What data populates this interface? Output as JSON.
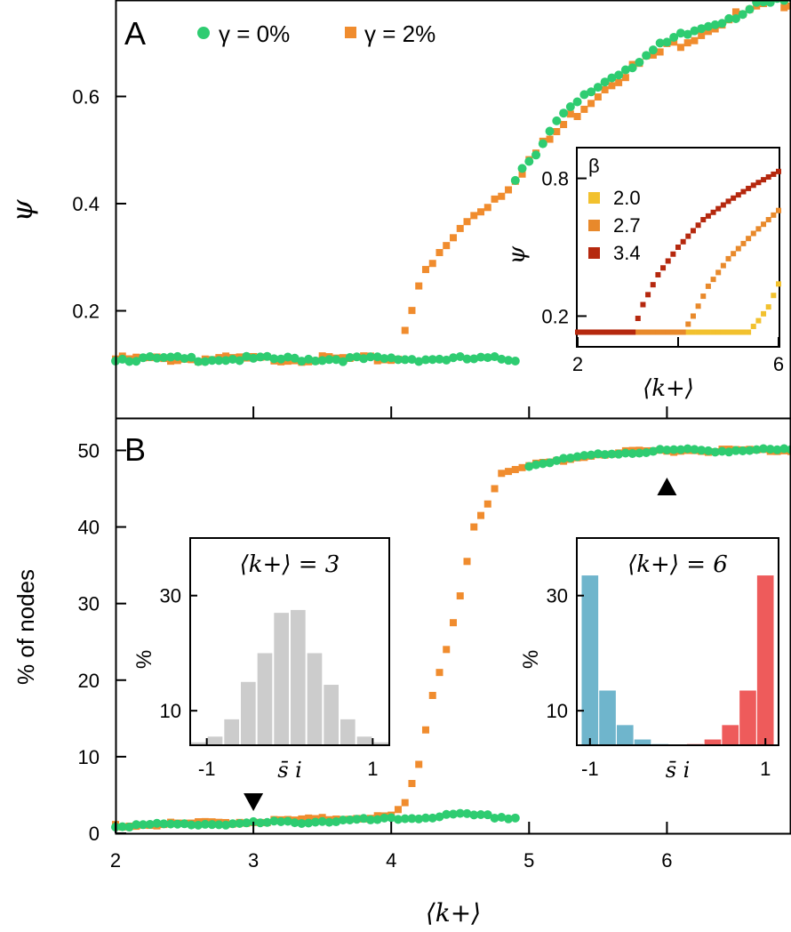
{
  "chart_data": [
    {
      "panel": "A",
      "type": "scatter",
      "panel_label": "A",
      "xlabel": "⟨k+⟩",
      "ylabel": "ψ",
      "xlim": [
        2,
        6.9
      ],
      "ylim": [
        0.0,
        0.78
      ],
      "yticks": [
        "0.2",
        "0.4",
        "0.6"
      ],
      "ytick_values": [
        0.2,
        0.4,
        0.6
      ],
      "xtick_values": [
        3,
        4,
        5,
        6
      ],
      "legend": [
        "γ = 0%",
        "γ = 2%"
      ],
      "legend_position": "top-left",
      "series": [
        {
          "name": "γ = 0%",
          "color": "#2ECC71",
          "marker": "circle",
          "segments": [
            {
              "x_start": 2.0,
              "x_end": 4.9,
              "y_start": 0.11,
              "y_end": 0.11
            },
            {
              "x_start": 4.9,
              "x_end": 6.9,
              "curve": "sqrt-rise",
              "points": [
                [
                  4.9,
                  0.45
                ],
                [
                  5.2,
                  0.55
                ],
                [
                  5.5,
                  0.62
                ],
                [
                  5.8,
                  0.67
                ],
                [
                  6.1,
                  0.71
                ],
                [
                  6.4,
                  0.745
                ],
                [
                  6.7,
                  0.77
                ],
                [
                  6.9,
                  0.78
                ]
              ]
            }
          ]
        },
        {
          "name": "γ = 2%",
          "color": "#F08C2E",
          "marker": "square",
          "segments": [
            {
              "x_start": 2.0,
              "x_end": 4.05,
              "y_start": 0.11,
              "y_end": 0.115
            },
            {
              "x_start": 4.1,
              "x_end": 6.9,
              "curve": "sqrt-rise",
              "points": [
                [
                  4.1,
                  0.17
                ],
                [
                  4.2,
                  0.25
                ],
                [
                  4.4,
                  0.32
                ],
                [
                  4.6,
                  0.38
                ],
                [
                  4.8,
                  0.42
                ],
                [
                  5.0,
                  0.48
                ],
                [
                  5.3,
                  0.56
                ],
                [
                  5.6,
                  0.63
                ],
                [
                  6.0,
                  0.69
                ],
                [
                  6.4,
                  0.74
                ],
                [
                  6.9,
                  0.78
                ]
              ]
            }
          ]
        }
      ],
      "inset": {
        "type": "scatter",
        "xlabel": "⟨k+⟩",
        "ylabel": "ψ",
        "xlim": [
          2,
          6
        ],
        "ylim": [
          0.07,
          0.93
        ],
        "xticks": [
          "2",
          "6"
        ],
        "xtick_values": [
          2,
          6
        ],
        "yticks": [
          "0.2",
          "0.8"
        ],
        "ytick_values": [
          0.2,
          0.8
        ],
        "legend_title": "β",
        "series": [
          {
            "name": "2.0",
            "color": "#F2C12E",
            "threshold": 5.5,
            "points": [
              [
                2,
                0.13
              ],
              [
                5.4,
                0.13
              ],
              [
                5.6,
                0.18
              ],
              [
                5.8,
                0.24
              ],
              [
                6.0,
                0.34
              ]
            ]
          },
          {
            "name": "2.7",
            "color": "#E8892B",
            "threshold": 4.2,
            "points": [
              [
                2,
                0.13
              ],
              [
                4.1,
                0.13
              ],
              [
                4.3,
                0.2
              ],
              [
                4.6,
                0.33
              ],
              [
                5.0,
                0.45
              ],
              [
                5.5,
                0.56
              ],
              [
                6.0,
                0.66
              ]
            ]
          },
          {
            "name": "3.4",
            "color": "#B5280E",
            "threshold": 3.2,
            "points": [
              [
                2,
                0.13
              ],
              [
                3.1,
                0.13
              ],
              [
                3.3,
                0.25
              ],
              [
                3.6,
                0.38
              ],
              [
                4.0,
                0.5
              ],
              [
                4.5,
                0.62
              ],
              [
                5.0,
                0.7
              ],
              [
                5.5,
                0.77
              ],
              [
                6.0,
                0.83
              ]
            ]
          }
        ]
      }
    },
    {
      "panel": "B",
      "type": "scatter",
      "panel_label": "B",
      "xlabel": "⟨k+⟩",
      "ylabel": "% of nodes",
      "xlim": [
        2,
        6.9
      ],
      "ylim": [
        0,
        54
      ],
      "xticks": [
        "2",
        "3",
        "4",
        "5",
        "6"
      ],
      "xtick_values": [
        2,
        3,
        4,
        5,
        6
      ],
      "yticks": [
        "0",
        "10",
        "20",
        "30",
        "40",
        "50"
      ],
      "ytick_values": [
        0,
        10,
        20,
        30,
        40,
        50
      ],
      "series": [
        {
          "name": "γ = 0%",
          "color": "#2ECC71",
          "marker": "circle",
          "points": [
            [
              2,
              1.0
            ],
            [
              3,
              1.3
            ],
            [
              4,
              1.8
            ],
            [
              4.5,
              2.4
            ],
            [
              4.9,
              2.0
            ],
            [
              5.0,
              48.0
            ],
            [
              5.5,
              49.5
            ],
            [
              6.0,
              50.0
            ],
            [
              6.9,
              50.0
            ]
          ]
        },
        {
          "name": "γ = 2%",
          "color": "#F08C2E",
          "marker": "square",
          "points": [
            [
              2,
              1.0
            ],
            [
              3,
              1.5
            ],
            [
              4.0,
              2.2
            ],
            [
              4.1,
              4.0
            ],
            [
              4.2,
              9.0
            ],
            [
              4.3,
              18.0
            ],
            [
              4.4,
              24.0
            ],
            [
              4.5,
              31.0
            ],
            [
              4.6,
              40.0
            ],
            [
              4.7,
              43.0
            ],
            [
              4.8,
              47.0
            ],
            [
              5.0,
              48.0
            ],
            [
              5.5,
              49.5
            ],
            [
              6.0,
              50.0
            ],
            [
              6.9,
              50.0
            ]
          ]
        }
      ],
      "markers": [
        {
          "label": "down-triangle",
          "x": 3,
          "y": 4
        },
        {
          "label": "up-triangle",
          "x": 6,
          "y": 47
        }
      ],
      "insets": [
        {
          "type": "bar",
          "title": "⟨k+⟩ = 3",
          "xlabel": "s̄ i",
          "ylabel": "%",
          "xticks": [
            "-1",
            "1"
          ],
          "xtick_values": [
            -1,
            1
          ],
          "yticks": [
            "10",
            "30"
          ],
          "ytick_values": [
            10,
            30
          ],
          "xlim": [
            -1.2,
            1.2
          ],
          "ylim": [
            4,
            40
          ],
          "bin_centers": [
            -1.1,
            -0.9,
            -0.7,
            -0.5,
            -0.3,
            -0.1,
            0.1,
            0.3,
            0.5,
            0.7,
            0.9,
            1.1
          ],
          "values": [
            4.5,
            5.5,
            8.5,
            15,
            20,
            27,
            27.5,
            20,
            14.5,
            8.5,
            5.5,
            4.5
          ],
          "colors": [
            "#CCCCCC",
            "#CCCCCC",
            "#CCCCCC",
            "#CCCCCC",
            "#CCCCCC",
            "#CCCCCC",
            "#CCCCCC",
            "#CCCCCC",
            "#CCCCCC",
            "#CCCCCC",
            "#CCCCCC",
            "#CCCCCC"
          ]
        },
        {
          "type": "bar",
          "title": "⟨k+⟩ = 6",
          "xlabel": "s̄ i",
          "ylabel": "%",
          "xticks": [
            "-1",
            "1"
          ],
          "xtick_values": [
            -1,
            1
          ],
          "yticks": [
            "10",
            "30"
          ],
          "ytick_values": [
            10,
            30
          ],
          "xlim": [
            -1.15,
            1.15
          ],
          "ylim": [
            4,
            40
          ],
          "bin_centers": [
            -1.0,
            -0.8,
            -0.6,
            -0.4,
            -0.2,
            0.0,
            0.2,
            0.4,
            0.6,
            0.8,
            1.0
          ],
          "values": [
            33.5,
            13.5,
            7.5,
            5.0,
            4.2,
            4.0,
            4.2,
            5.0,
            7.5,
            13.5,
            33.5
          ],
          "colors": [
            "#6FB5CC",
            "#6FB5CC",
            "#6FB5CC",
            "#6FB5CC",
            "#6FB5CC",
            "#ffffff",
            "#EE5B5B",
            "#EE5B5B",
            "#EE5B5B",
            "#EE5B5B",
            "#EE5B5B"
          ]
        }
      ]
    }
  ]
}
